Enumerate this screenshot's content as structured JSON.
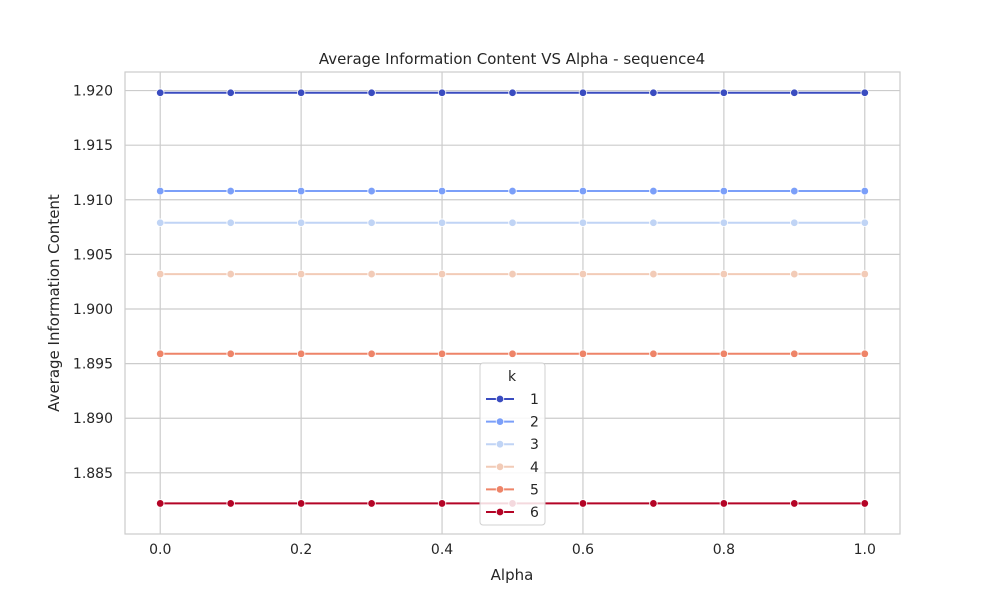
{
  "chart_data": {
    "type": "line",
    "title": "Average Information Content VS Alpha - sequence4",
    "xlabel": "Alpha",
    "ylabel": "Average Information Content",
    "xlim": [
      -0.05,
      1.05
    ],
    "ylim": [
      1.8794,
      1.9217
    ],
    "xticks": [
      "0.0",
      "0.2",
      "0.4",
      "0.6",
      "0.8",
      "1.0"
    ],
    "yticks": [
      "1.885",
      "1.890",
      "1.895",
      "1.900",
      "1.905",
      "1.910",
      "1.915",
      "1.920"
    ],
    "grid": true,
    "legend": {
      "title": "k",
      "placement": "lower-center"
    },
    "x": [
      0.0,
      0.1,
      0.2,
      0.3,
      0.4,
      0.5,
      0.6,
      0.7,
      0.8,
      0.9,
      1.0
    ],
    "series": [
      {
        "name": "1",
        "color": "#3a4cc0",
        "values": [
          1.9198,
          1.9198,
          1.9198,
          1.9198,
          1.9198,
          1.9198,
          1.9198,
          1.9198,
          1.9198,
          1.9198,
          1.9198
        ]
      },
      {
        "name": "2",
        "color": "#7b9ff9",
        "values": [
          1.9108,
          1.9108,
          1.9108,
          1.9108,
          1.9108,
          1.9108,
          1.9108,
          1.9108,
          1.9108,
          1.9108,
          1.9108
        ]
      },
      {
        "name": "3",
        "color": "#c0d4f5",
        "values": [
          1.9079,
          1.9079,
          1.9079,
          1.9079,
          1.9079,
          1.9079,
          1.9079,
          1.9079,
          1.9079,
          1.9079,
          1.9079
        ]
      },
      {
        "name": "4",
        "color": "#f2cbb7",
        "values": [
          1.9032,
          1.9032,
          1.9032,
          1.9032,
          1.9032,
          1.9032,
          1.9032,
          1.9032,
          1.9032,
          1.9032,
          1.9032
        ]
      },
      {
        "name": "5",
        "color": "#ee8468",
        "values": [
          1.8959,
          1.8959,
          1.8959,
          1.8959,
          1.8959,
          1.8959,
          1.8959,
          1.8959,
          1.8959,
          1.8959,
          1.8959
        ]
      },
      {
        "name": "6",
        "color": "#b40426",
        "values": [
          1.8822,
          1.8822,
          1.8822,
          1.8822,
          1.8822,
          1.8822,
          1.8822,
          1.8822,
          1.8822,
          1.8822,
          1.8822
        ]
      }
    ]
  }
}
